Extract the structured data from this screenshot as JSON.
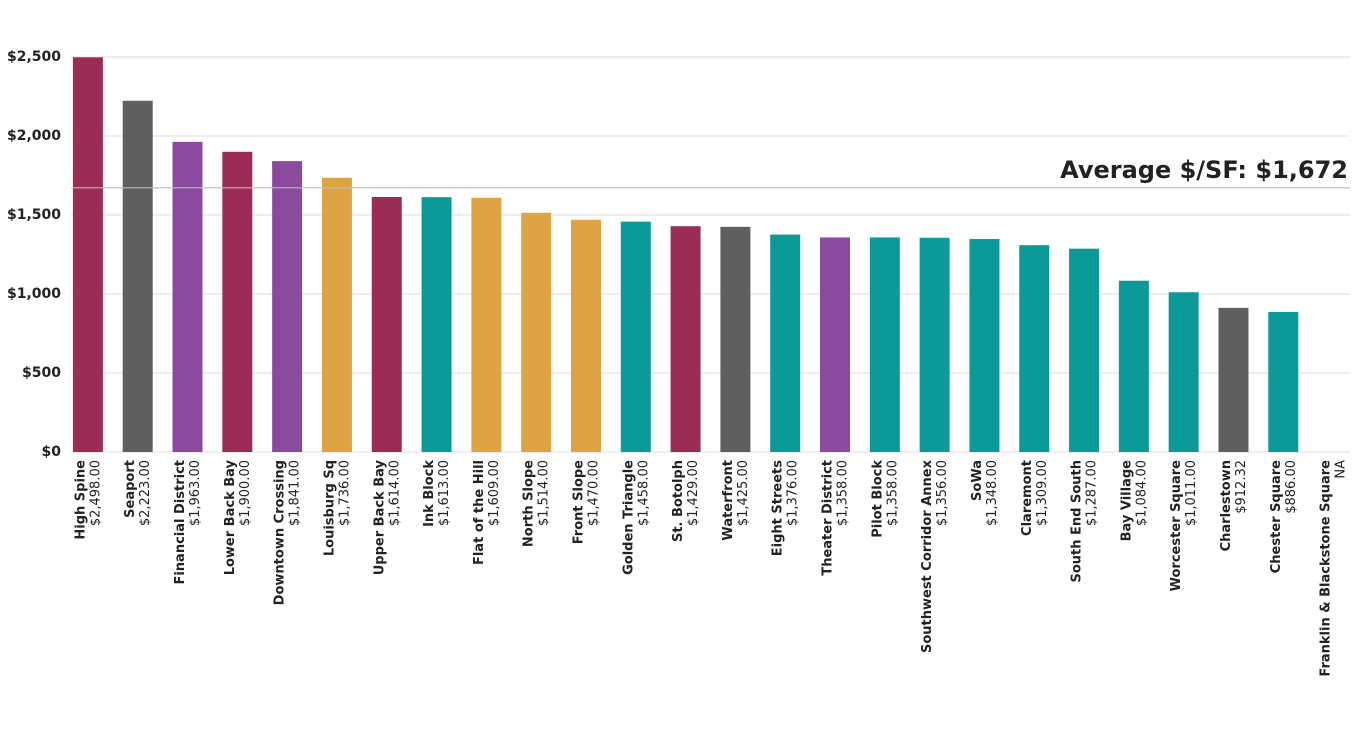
{
  "chart_data": {
    "type": "bar",
    "categories": [
      "High Spine",
      "Seaport",
      "Financial District",
      "Lower Back Bay",
      "Downtown Crossing",
      "Louisburg Sq",
      "Upper Back Bay",
      "Ink Block",
      "Flat of the Hill",
      "North Slope",
      "Front Slope",
      "Golden Triangle",
      "St. Botolph",
      "Waterfront",
      "Eight Streets",
      "Theater District",
      "Pilot Block",
      "Southwest Corridor Annex",
      "SoWa",
      "Claremont",
      "South End South",
      "Bay Village",
      "Worcester Square",
      "Charlestown",
      "Chester Square",
      "Franklin & Blackstone Square"
    ],
    "values": [
      2498,
      2223,
      1963,
      1900,
      1841,
      1736,
      1614,
      1613,
      1609,
      1514,
      1470,
      1458,
      1429,
      1425,
      1376,
      1358,
      1358,
      1356,
      1348,
      1309,
      1287,
      1084,
      1011,
      912.32,
      886,
      null
    ],
    "value_labels": [
      "$2,498.00",
      "$2,223.00",
      "$1,963.00",
      "$1,900.00",
      "$1,841.00",
      "$1,736.00",
      "$1,614.00",
      "$1,613.00",
      "$1,609.00",
      "$1,514.00",
      "$1,470.00",
      "$1,458.00",
      "$1,429.00",
      "$1,425.00",
      "$1,376.00",
      "$1,358.00",
      "$1,358.00",
      "$1,356.00",
      "$1,348.00",
      "$1,309.00",
      "$1,287.00",
      "$1,084.00",
      "$1,011.00",
      "$912.32",
      "$886.00",
      "NA"
    ],
    "colors": [
      "#9b2c55",
      "#5f5f5f",
      "#8a4a9e",
      "#9b2c55",
      "#8a4a9e",
      "#dea444",
      "#9b2c55",
      "#0b9a98",
      "#dea444",
      "#dea444",
      "#dea444",
      "#0b9a98",
      "#9b2c55",
      "#5f5f5f",
      "#0b9a98",
      "#8a4a9e",
      "#0b9a98",
      "#0b9a98",
      "#0b9a98",
      "#0b9a98",
      "#0b9a98",
      "#0b9a98",
      "#0b9a98",
      "#5f5f5f",
      "#0b9a98",
      "#0b9a98"
    ],
    "ylim": [
      0,
      2500
    ],
    "yticks": [
      {
        "value": 0,
        "label": "$0"
      },
      {
        "value": 500,
        "label": "$500"
      },
      {
        "value": 1000,
        "label": "$1,000"
      },
      {
        "value": 1500,
        "label": "$1,500"
      },
      {
        "value": 2000,
        "label": "$2,000"
      },
      {
        "value": 2500,
        "label": "$2,500"
      }
    ],
    "grid": true,
    "average": {
      "value": 1672,
      "label": "Average $/SF: $1,672"
    }
  }
}
